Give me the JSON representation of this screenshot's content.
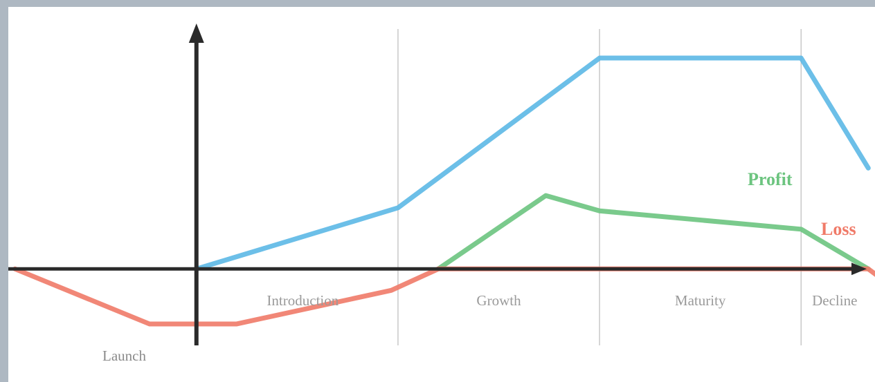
{
  "chart_data": {
    "type": "line",
    "x_domain": [
      -1.4,
      5.05
    ],
    "y_domain": [
      -1.85,
      4.4
    ],
    "stages": [
      {
        "label": "Introduction",
        "start": 0,
        "end": 1.5
      },
      {
        "label": "Growth",
        "start": 1.5,
        "end": 3.0
      },
      {
        "label": "Maturity",
        "start": 3.0,
        "end": 4.5
      },
      {
        "label": "Decline",
        "start": 4.5,
        "end": 5.05
      }
    ],
    "launch_label": "Launch",
    "launch_x": 0,
    "series": [
      {
        "key": "sales",
        "color": "#5cb8e6",
        "points": [
          [
            0,
            0
          ],
          [
            1.5,
            1
          ],
          [
            3,
            3.45
          ],
          [
            4.5,
            3.45
          ],
          [
            5.0,
            1.65
          ]
        ]
      },
      {
        "key": "profit",
        "name": "Profit",
        "color": "#6cc47f",
        "points": [
          [
            1.8,
            0
          ],
          [
            2.6,
            1.2
          ],
          [
            3.0,
            0.95
          ],
          [
            4.5,
            0.65
          ],
          [
            5.0,
            0
          ]
        ]
      },
      {
        "key": "loss",
        "name": "Loss",
        "color": "#f07a68",
        "points": [
          [
            -1.35,
            0
          ],
          [
            -0.35,
            -0.9
          ],
          [
            0.3,
            -0.9
          ],
          [
            1.45,
            -0.35
          ],
          [
            1.8,
            0
          ],
          [
            5.0,
            0
          ],
          [
            5.4,
            -0.65
          ]
        ]
      }
    ],
    "colors": {
      "axis": "#2a2a2a",
      "divider": "#c8c8c8",
      "profit_text": "#6cc47f",
      "loss_text": "#f07a68",
      "border": "#aeb8c2"
    }
  }
}
